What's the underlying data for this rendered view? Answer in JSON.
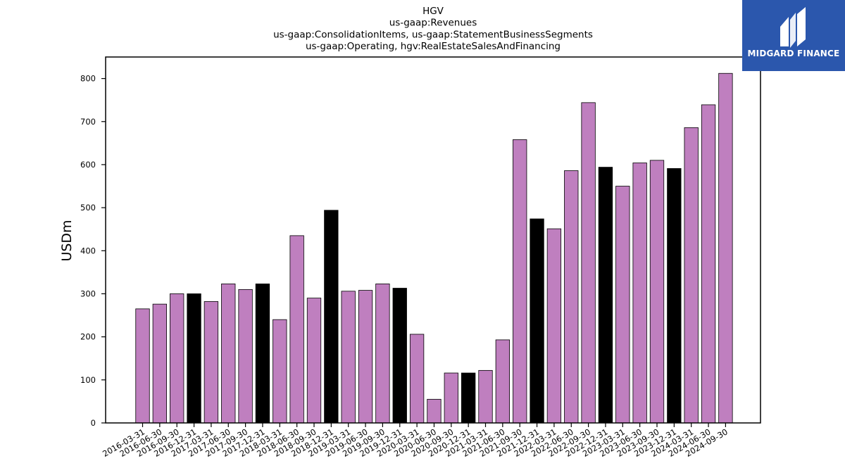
{
  "chart_data": {
    "type": "bar",
    "title_lines": [
      "HGV",
      "us-gaap:Revenues",
      "us-gaap:ConsolidationItems, us-gaap:StatementBusinessSegments",
      "us-gaap:Operating, hgv:RealEstateSalesAndFinancing"
    ],
    "ylabel": "USDm",
    "xlabel": "",
    "ylim": [
      0,
      850
    ],
    "yticks": [
      0,
      100,
      200,
      300,
      400,
      500,
      600,
      700,
      800
    ],
    "categories": [
      "2016-03-31",
      "2016-06-30",
      "2016-09-30",
      "2016-12-31",
      "2017-03-31",
      "2017-06-30",
      "2017-09-30",
      "2017-12-31",
      "2018-03-31",
      "2018-06-30",
      "2018-09-30",
      "2018-12-31",
      "2019-03-31",
      "2019-06-30",
      "2019-09-30",
      "2019-12-31",
      "2020-03-31",
      "2020-06-30",
      "2020-09-30",
      "2020-12-31",
      "2021-03-31",
      "2021-06-30",
      "2021-09-30",
      "2021-12-31",
      "2022-03-31",
      "2022-06-30",
      "2022-09-30",
      "2022-12-31",
      "2023-03-31",
      "2023-06-30",
      "2023-09-30",
      "2023-12-31",
      "2024-03-31",
      "2024-06-30",
      "2024-09-30"
    ],
    "values": [
      265,
      276,
      300,
      300,
      282,
      323,
      310,
      323,
      240,
      435,
      290,
      494,
      306,
      308,
      323,
      313,
      206,
      55,
      116,
      116,
      122,
      193,
      658,
      474,
      451,
      586,
      744,
      594,
      550,
      604,
      610,
      591,
      686,
      739,
      812
    ],
    "year_end_color": "#000000",
    "quarter_color": "#bf7fbf",
    "grid": false
  },
  "logo": {
    "text": "MIDGARD FINANCE",
    "icon": "midgard-logo-icon",
    "background": "#2b57ad"
  }
}
